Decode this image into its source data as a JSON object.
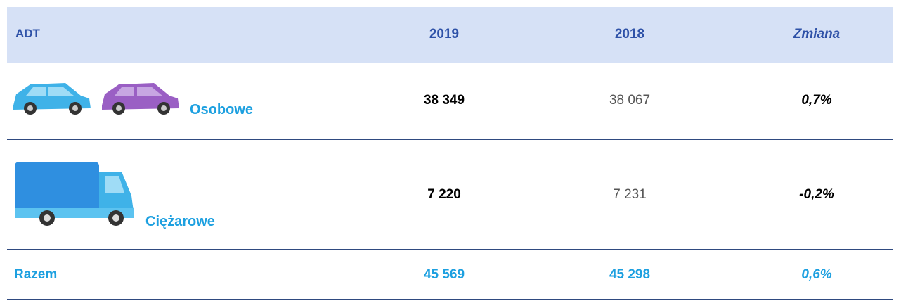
{
  "table": {
    "header": [
      "ADT",
      "2019",
      "2018",
      "Zmiana"
    ],
    "rows": [
      [
        "Osobowe",
        "38 349",
        "38 067",
        "0,7%"
      ],
      [
        "Ciężarowe",
        "7 220",
        "7 231",
        "-0,2%"
      ],
      [
        "Razem",
        "45 569",
        "45 298",
        "0,6%"
      ]
    ]
  }
}
